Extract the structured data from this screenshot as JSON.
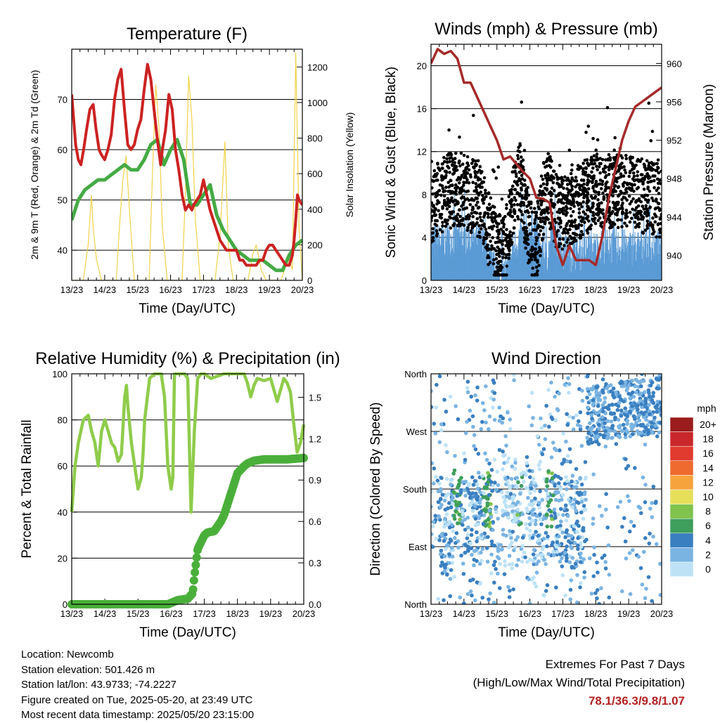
{
  "x_ticks": [
    "13/23",
    "14/23",
    "15/23",
    "16/23",
    "17/23",
    "18/23",
    "19/23",
    "20/23"
  ],
  "x_label": "Time (Day/UTC)",
  "chart_data": [
    {
      "type": "line",
      "title": "Temperature (F)",
      "xlabel": "Time (Day/UTC)",
      "ylabel": "2m & 9m T (Red, Orange) & 2m Td (Green)",
      "ylabel_right": "Solar Insolation (Yellow)",
      "ylim": [
        34,
        80
      ],
      "yticks": [
        40,
        50,
        60,
        70
      ],
      "y2lim": [
        0,
        1300
      ],
      "y2ticks": [
        0,
        200,
        400,
        600,
        800,
        1000,
        1200
      ],
      "grid": "horizontal",
      "series": [
        {
          "name": "2m T",
          "color": "#cc2222",
          "x": [
            0,
            0.06,
            0.12,
            0.2,
            0.28,
            0.36,
            0.45,
            0.55,
            0.65,
            0.74,
            0.83,
            0.9,
            1.0,
            1.1,
            1.2,
            1.3,
            1.4,
            1.5,
            1.6,
            1.7,
            1.8,
            1.9,
            2.0,
            2.1,
            2.2,
            2.3,
            2.4,
            2.5,
            2.6,
            2.7,
            2.75,
            2.85,
            2.95,
            3.05,
            3.15,
            3.25,
            3.35,
            3.45,
            3.55,
            3.65,
            3.7,
            3.8,
            3.9,
            4.0,
            4.1,
            4.2,
            4.3,
            4.4,
            4.5,
            4.6,
            4.7,
            4.8,
            4.9,
            5.0,
            5.1,
            5.2,
            5.3,
            5.4,
            5.5,
            5.6,
            5.7,
            5.8,
            5.9,
            6.0,
            6.1,
            6.2,
            6.3,
            6.4,
            6.5,
            6.6,
            6.7,
            6.75,
            6.8,
            6.85,
            6.9,
            7.0
          ],
          "values": [
            71,
            66,
            61,
            58,
            57,
            60,
            64,
            68,
            69,
            64,
            60,
            59,
            58,
            60,
            63,
            70,
            74,
            76,
            68,
            61,
            60,
            61,
            64,
            66,
            72,
            77,
            74,
            68,
            62,
            57,
            60,
            64,
            71,
            68,
            60,
            56,
            51,
            48,
            49,
            48,
            49,
            50,
            51,
            54,
            51,
            48,
            46,
            44,
            42,
            41,
            40,
            40,
            40,
            40,
            38,
            38,
            37,
            37,
            37,
            37,
            38,
            38,
            40,
            41,
            41,
            40,
            39,
            38,
            37,
            37,
            39,
            42,
            46,
            51,
            50,
            49
          ]
        },
        {
          "name": "2m Td",
          "color": "#44aa44",
          "x": [
            0,
            0.2,
            0.4,
            0.6,
            0.8,
            1.0,
            1.2,
            1.4,
            1.6,
            1.8,
            2.0,
            2.2,
            2.4,
            2.6,
            2.8,
            3.0,
            3.2,
            3.4,
            3.6,
            3.8,
            4.0,
            4.2,
            4.4,
            4.6,
            4.8,
            5.0,
            5.2,
            5.4,
            5.6,
            5.8,
            6.0,
            6.2,
            6.4,
            6.6,
            6.8,
            7.0
          ],
          "values": [
            46,
            50,
            52,
            53,
            54,
            54,
            55,
            56,
            57,
            56,
            56,
            58,
            61,
            62,
            57,
            60,
            62,
            58,
            49,
            49,
            51,
            53,
            47,
            44,
            42,
            40,
            39,
            38,
            38,
            38,
            37,
            36,
            36,
            39,
            41,
            42
          ]
        },
        {
          "name": "Solar Insolation",
          "color": "#f2d24a",
          "axis": "right",
          "x": [
            0,
            0.35,
            0.5,
            0.6,
            0.65,
            0.75,
            0.9,
            1.0,
            1.35,
            1.45,
            1.55,
            1.65,
            1.75,
            1.9,
            2.0,
            2.35,
            2.45,
            2.55,
            2.65,
            2.75,
            2.9,
            3.0,
            3.35,
            3.45,
            3.55,
            3.65,
            3.75,
            3.9,
            4.0,
            4.35,
            4.5,
            4.6,
            4.65,
            4.75,
            4.9,
            5.0,
            5.35,
            5.5,
            5.6,
            5.75,
            5.9,
            6.0,
            6.35,
            6.5,
            6.6,
            6.7,
            6.8,
            6.9,
            7.0
          ],
          "values": [
            0,
            0,
            200,
            480,
            300,
            120,
            0,
            0,
            0,
            300,
            560,
            700,
            400,
            0,
            0,
            0,
            600,
            1100,
            850,
            300,
            0,
            0,
            0,
            500,
            1150,
            900,
            350,
            0,
            0,
            0,
            250,
            600,
            780,
            200,
            0,
            0,
            0,
            150,
            200,
            60,
            0,
            0,
            0,
            80,
            120,
            60,
            1280,
            300,
            0
          ]
        }
      ]
    },
    {
      "type": "scatter",
      "title": "Winds (mph) & Pressure (mb)",
      "xlabel": "Time (Day/UTC)",
      "ylabel": "Sonic Wind & Gust (Blue, Black)",
      "ylabel_right": "Station Pressure (Maroon)",
      "ylim": [
        0,
        22
      ],
      "yticks": [
        0,
        4,
        8,
        12,
        16,
        20
      ],
      "y2lim": [
        937.4,
        962
      ],
      "y2ticks": [
        940,
        944,
        948,
        952,
        956,
        960
      ],
      "grid": "horizontal",
      "series": [
        {
          "name": "Pressure",
          "color": "#a52a2a",
          "axis": "right",
          "x": [
            0,
            0.2,
            0.4,
            0.6,
            0.8,
            1.0,
            1.2,
            1.4,
            1.6,
            1.8,
            2.0,
            2.2,
            2.4,
            2.6,
            2.8,
            3.0,
            3.2,
            3.4,
            3.6,
            3.8,
            4.0,
            4.2,
            4.4,
            4.6,
            4.8,
            5.0,
            5.2,
            5.4,
            5.6,
            5.8,
            6.0,
            6.2,
            6.4,
            6.6,
            6.8,
            7.0
          ],
          "values": [
            960,
            961.5,
            961,
            961.3,
            960.5,
            958,
            958,
            956.5,
            955,
            953.5,
            952,
            950,
            950.3,
            949.5,
            948.7,
            948,
            946,
            945.9,
            945.5,
            941,
            939,
            941,
            939.5,
            939.5,
            939.5,
            939,
            942,
            946,
            949,
            952,
            954,
            955.5,
            956,
            956.5,
            957,
            957.5
          ]
        },
        {
          "name": "Gust",
          "color": "#000000",
          "values_range": [
            1,
            21
          ]
        },
        {
          "name": "Wind",
          "color": "#5b9bd5",
          "values_range": [
            0,
            9
          ]
        }
      ]
    },
    {
      "type": "line",
      "title": "Relative Humidity (%) & Precipitation (in)",
      "xlabel": "Time (Day/UTC)",
      "ylabel": "Percent & Total Rainfall",
      "ylim": [
        0,
        100
      ],
      "yticks": [
        0,
        20,
        40,
        60,
        80,
        100
      ],
      "y2lim": [
        0,
        1.67
      ],
      "y2ticks": [
        "0.0",
        "0.3",
        "0.6",
        "0.9",
        "1.2",
        "1.5"
      ],
      "grid": "horizontal",
      "series": [
        {
          "name": "Relative Humidity",
          "color": "#8fcc4a",
          "x": [
            0,
            0.1,
            0.2,
            0.35,
            0.5,
            0.6,
            0.7,
            0.8,
            0.9,
            1.0,
            1.1,
            1.2,
            1.3,
            1.4,
            1.5,
            1.6,
            1.65,
            1.7,
            1.8,
            1.9,
            2.0,
            2.1,
            2.15,
            2.2,
            2.35,
            2.5,
            2.55,
            2.7,
            2.8,
            2.9,
            3.0,
            3.05,
            3.1,
            3.2,
            3.3,
            3.4,
            3.5,
            3.6,
            3.7,
            3.8,
            3.9,
            4.0,
            4.2,
            4.4,
            4.6,
            4.8,
            5.0,
            5.2,
            5.3,
            5.4,
            5.5,
            5.6,
            5.8,
            6.0,
            6.2,
            6.4,
            6.5,
            6.6,
            6.7,
            6.8,
            6.9,
            7.0
          ],
          "values": [
            40,
            60,
            70,
            80,
            82,
            75,
            70,
            60,
            75,
            80,
            75,
            70,
            68,
            62,
            65,
            90,
            95,
            85,
            70,
            60,
            50,
            55,
            65,
            80,
            98,
            100,
            100,
            100,
            90,
            60,
            50,
            55,
            100,
            100,
            100,
            100,
            98,
            40,
            75,
            98,
            100,
            100,
            98,
            99,
            100,
            100,
            100,
            100,
            96,
            90,
            95,
            98,
            97,
            98,
            88,
            98,
            96,
            92,
            78,
            66,
            70,
            78
          ]
        },
        {
          "name": "Total Precipitation",
          "color": "#4aaf3a",
          "axis": "right",
          "x": [
            0,
            1.0,
            2.0,
            2.9,
            3.0,
            3.2,
            3.5,
            3.65,
            3.7,
            3.75,
            3.8,
            3.9,
            4.0,
            4.1,
            4.3,
            4.5,
            4.6,
            4.8,
            5.0,
            5.2,
            5.3,
            5.5,
            5.8,
            6.0,
            6.5,
            7.0
          ],
          "values": [
            0,
            0,
            0,
            0,
            0.01,
            0.03,
            0.04,
            0.08,
            0.2,
            0.3,
            0.4,
            0.45,
            0.5,
            0.52,
            0.53,
            0.6,
            0.65,
            0.8,
            0.95,
            1.0,
            1.02,
            1.04,
            1.05,
            1.05,
            1.05,
            1.06
          ]
        }
      ]
    },
    {
      "type": "scatter",
      "title": "Wind Direction",
      "xlabel": "Time (Day/UTC)",
      "ylabel": "Direction (Colored By Speed)",
      "yticks": [
        "North",
        "West",
        "South",
        "East",
        "North"
      ],
      "grid": "horizontal",
      "color_by": "speed",
      "colorbar": {
        "unit": "mph",
        "labels": [
          "20+",
          "18",
          "16",
          "14",
          "12",
          "10",
          "8",
          "6",
          "4",
          "2",
          "0"
        ],
        "colors": [
          "#9a1c1c",
          "#c8282a",
          "#e03b2e",
          "#ee6a2e",
          "#f6a33e",
          "#e6df5a",
          "#7fc34d",
          "#3e9e5c",
          "#3a7fc0",
          "#7ab4e2",
          "#bde2f6"
        ]
      }
    }
  ],
  "meta": {
    "location": "Location: Newcomb",
    "elevation": "Station elevation: 501.426 m",
    "latlon": "Station lat/lon: 43.9733; -74.2227",
    "created": "Figure created on Tue, 2025-05-20, at 23:49 UTC",
    "recent": "Most recent data timestamp: 2025/05/20 23:15:00"
  },
  "extremes": {
    "title": "Extremes For Past 7 Days",
    "subtitle": "(High/Low/Max Wind/Total Precipitation)",
    "values": "78.1/36.3/9.8/1.07"
  }
}
